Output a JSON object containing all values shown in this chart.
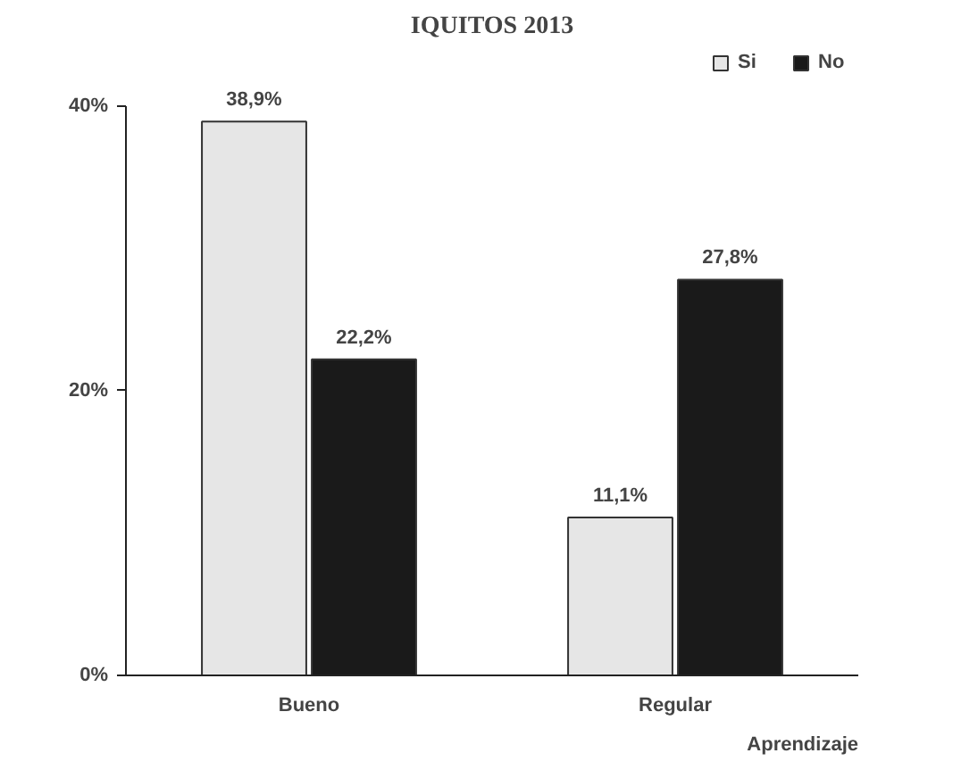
{
  "chart_data": {
    "type": "bar",
    "title": "IQUITOS 2013",
    "xlabel": "Aprendizaje",
    "categories": [
      "Bueno",
      "Regular"
    ],
    "series": [
      {
        "name": "Si",
        "color": "#e6e6e6",
        "values": [
          38.9,
          11.1
        ],
        "value_labels": [
          "38,9%",
          "11,1%"
        ]
      },
      {
        "name": "No",
        "color": "#1a1a1a",
        "values": [
          22.2,
          27.8
        ],
        "value_labels": [
          "22,2%",
          "27,8%"
        ]
      }
    ],
    "ylim": [
      0,
      40
    ],
    "yticks": [
      {
        "value": 0,
        "label": "0%"
      },
      {
        "value": 20,
        "label": "20%"
      },
      {
        "value": 40,
        "label": "40%"
      }
    ],
    "grid": false,
    "legend": "top right"
  }
}
